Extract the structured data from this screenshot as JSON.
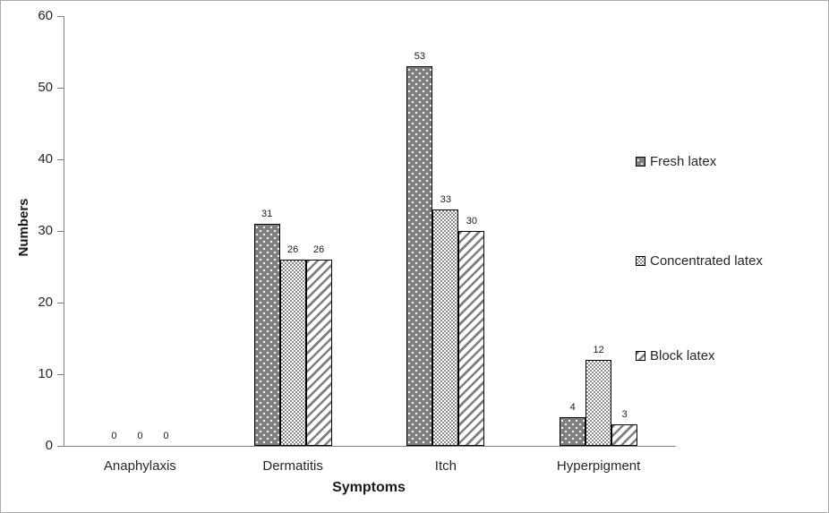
{
  "chart_data": {
    "type": "bar",
    "title": "",
    "categories": [
      "Anaphylaxis",
      "Dermatitis",
      "Itch",
      "Hyperpigment"
    ],
    "series": [
      {
        "name": "Fresh latex",
        "pattern": "dark-gray-white-dots",
        "values": [
          0,
          31,
          53,
          4
        ]
      },
      {
        "name": "Concentrated latex",
        "pattern": "fine-gray-checkerboard",
        "values": [
          0,
          26,
          33,
          12
        ]
      },
      {
        "name": "Block latex",
        "pattern": "upward-diagonal-stripes",
        "values": [
          0,
          26,
          30,
          3
        ]
      }
    ],
    "xlabel": "Symptoms",
    "ylabel": "Numbers",
    "ylim": [
      0,
      60
    ],
    "ytick_step": 10,
    "yticks": [
      0,
      10,
      20,
      30,
      40,
      50,
      60
    ],
    "grid": false,
    "legend_position": "right",
    "value_labels_shown": true,
    "colors": {
      "bar_dark_fill": "#7f7f7f",
      "pattern_gray": "#808080",
      "bar_outline": "#000000",
      "axis": "#808080",
      "text": "#262626",
      "background": "#ffffff"
    }
  }
}
